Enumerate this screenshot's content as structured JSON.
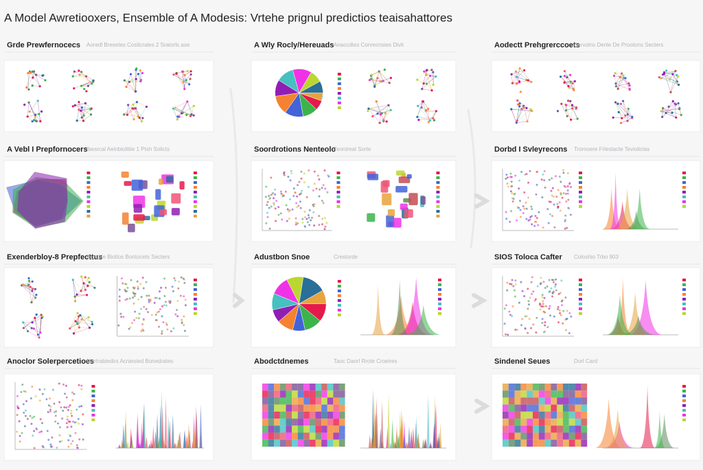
{
  "header": {
    "title": "A Model Awretiooxers, Ensemble of A Modesis: Vrtehe prignul predictios teaisahattores"
  },
  "panels": [
    {
      "title": "Grde Prewfernocecs",
      "subtitle": "Aoredl Bresetes Costicrales 2 Sratorls ase"
    },
    {
      "title": "A Wly Rocly/Hereuads",
      "subtitle": "Anaccdtes Conrecnsies Dlvit"
    },
    {
      "title": "Aodectt Prehgrerccoets",
      "subtitle": "Bervolns Denle De Prootons Secters"
    },
    {
      "title": "A Vebl I Prepfornocers",
      "subtitle": "Ibesrcal Aeinbiolitiie 1 Ptsh Solicts"
    },
    {
      "title": "Soordrotions Nenteolo",
      "subtitle": "Teontreal Sorte"
    },
    {
      "title": "Dorbd I Svleyrecons",
      "subtitle": "Tromoere Frlestacte Teviolicias"
    },
    {
      "title": "Exenderbloy-8 Prepfecttus",
      "subtitle": "Roruble Biotlos Bontocets Secters"
    },
    {
      "title": "Adustbon Snoe",
      "subtitle": "Crestorde"
    },
    {
      "title": "SIOS Toloca Cafter",
      "subtitle": "Coloshio Trbo 903"
    },
    {
      "title": "Anoclor Solerpercetioes",
      "subtitle": "Mortrabiedirs Acniesied Bonedrates"
    },
    {
      "title": "Abodctdnemes",
      "subtitle": "Taoc Daorl Rrote Croeires"
    },
    {
      "title": "Sindenel Seues",
      "subtitle": "Dorl Card"
    }
  ]
}
